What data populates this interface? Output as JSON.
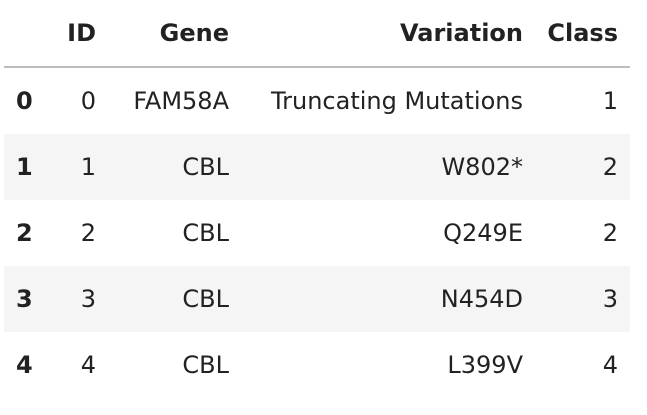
{
  "table": {
    "columns": [
      "",
      "ID",
      "Gene",
      "Variation",
      "Class"
    ],
    "rows": [
      {
        "index": "0",
        "id": "0",
        "gene": "FAM58A",
        "variation": "Truncating Mutations",
        "class": "1"
      },
      {
        "index": "1",
        "id": "1",
        "gene": "CBL",
        "variation": "W802*",
        "class": "2"
      },
      {
        "index": "2",
        "id": "2",
        "gene": "CBL",
        "variation": "Q249E",
        "class": "2"
      },
      {
        "index": "3",
        "id": "3",
        "gene": "CBL",
        "variation": "N454D",
        "class": "3"
      },
      {
        "index": "4",
        "id": "4",
        "gene": "CBL",
        "variation": "L399V",
        "class": "4"
      }
    ]
  }
}
